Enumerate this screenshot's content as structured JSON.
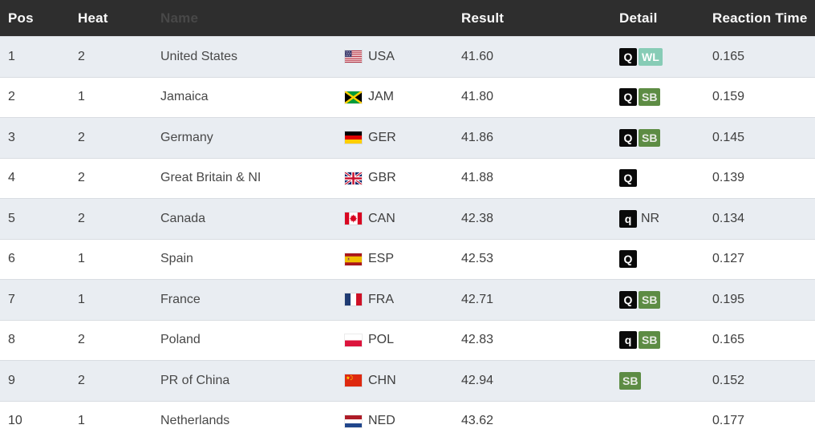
{
  "columns": {
    "pos": "Pos",
    "heat": "Heat",
    "name": "Name",
    "country": "",
    "result": "Result",
    "detail": "Detail",
    "reaction": "Reaction Time"
  },
  "table": {
    "rows": [
      {
        "pos": "1",
        "heat": "2",
        "name": "United States",
        "code": "USA",
        "result": "41.60",
        "badges": [
          {
            "label": "Q",
            "style": "black"
          },
          {
            "label": "WL",
            "style": "mint"
          }
        ],
        "reaction": "0.165"
      },
      {
        "pos": "2",
        "heat": "1",
        "name": "Jamaica",
        "code": "JAM",
        "result": "41.80",
        "badges": [
          {
            "label": "Q",
            "style": "black"
          },
          {
            "label": "SB",
            "style": "green"
          }
        ],
        "reaction": "0.159"
      },
      {
        "pos": "3",
        "heat": "2",
        "name": "Germany",
        "code": "GER",
        "result": "41.86",
        "badges": [
          {
            "label": "Q",
            "style": "black"
          },
          {
            "label": "SB",
            "style": "green"
          }
        ],
        "reaction": "0.145"
      },
      {
        "pos": "4",
        "heat": "2",
        "name": "Great Britain & NI",
        "code": "GBR",
        "result": "41.88",
        "badges": [
          {
            "label": "Q",
            "style": "black"
          }
        ],
        "reaction": "0.139"
      },
      {
        "pos": "5",
        "heat": "2",
        "name": "Canada",
        "code": "CAN",
        "result": "42.38",
        "badges": [
          {
            "label": "q",
            "style": "black"
          },
          {
            "label": "NR",
            "style": "plain"
          }
        ],
        "reaction": "0.134"
      },
      {
        "pos": "6",
        "heat": "1",
        "name": "Spain",
        "code": "ESP",
        "result": "42.53",
        "badges": [
          {
            "label": "Q",
            "style": "black"
          }
        ],
        "reaction": "0.127"
      },
      {
        "pos": "7",
        "heat": "1",
        "name": "France",
        "code": "FRA",
        "result": "42.71",
        "badges": [
          {
            "label": "Q",
            "style": "black"
          },
          {
            "label": "SB",
            "style": "green"
          }
        ],
        "reaction": "0.195"
      },
      {
        "pos": "8",
        "heat": "2",
        "name": "Poland",
        "code": "POL",
        "result": "42.83",
        "badges": [
          {
            "label": "q",
            "style": "black"
          },
          {
            "label": "SB",
            "style": "green"
          }
        ],
        "reaction": "0.165"
      },
      {
        "pos": "9",
        "heat": "2",
        "name": "PR of China",
        "code": "CHN",
        "result": "42.94",
        "badges": [
          {
            "label": "SB",
            "style": "green"
          }
        ],
        "reaction": "0.152"
      },
      {
        "pos": "10",
        "heat": "1",
        "name": "Netherlands",
        "code": "NED",
        "result": "43.62",
        "badges": [],
        "reaction": "0.177"
      }
    ]
  },
  "theme": {
    "header_bg": "#2e2e2e",
    "header_text": "#fafafa",
    "row_bg": "#ffffff",
    "row_alt_bg": "#e9edf2",
    "divider": "#d9dde2",
    "text": "#3e3e3e",
    "badge_black": "#0a0a0a",
    "badge_green": "#5d8c44",
    "badge_mint": "#87ccb6"
  }
}
